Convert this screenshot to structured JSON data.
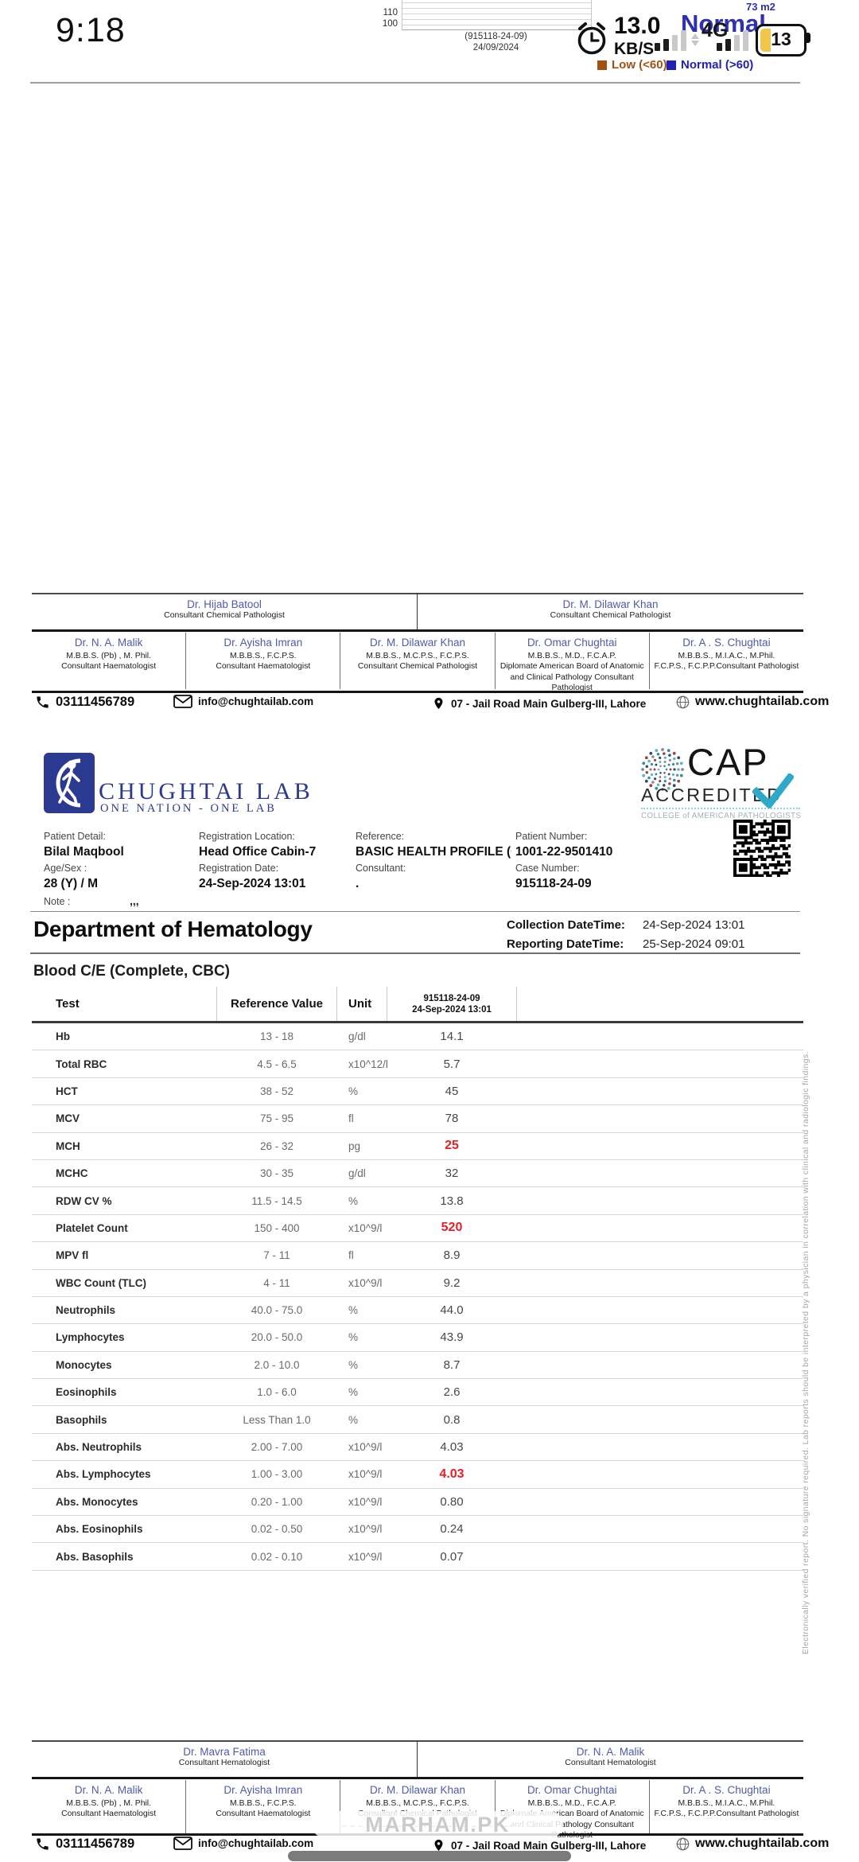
{
  "status_bar": {
    "time": "9:18",
    "net_speed": "13.0",
    "net_speed_unit": "KB/S",
    "network_type": "4G",
    "battery_level": "13"
  },
  "page1_chart": {
    "type": "line",
    "y_ticks": [
      "110",
      "100"
    ],
    "x_tick_line1": "(915118-24-09)",
    "x_tick_line2": "24/09/2024",
    "result_text": "Normal",
    "result_note": "73 m2",
    "legend_low": "Low (<60)",
    "legend_normal": "Normal (>60)",
    "legend_low_color": "#a05214",
    "legend_normal_color": "#2222b0"
  },
  "footer_page1": {
    "signatories": [
      {
        "name": "Dr. Hijab Batool",
        "title": "Consultant Chemical Pathologist"
      },
      {
        "name": "Dr. M. Dilawar Khan",
        "title": "Consultant Chemical Pathologist"
      }
    ]
  },
  "footer_page2": {
    "signatories": [
      {
        "name": "Dr. Mavra Fatima",
        "title": "Consultant Hematologist"
      },
      {
        "name": "Dr. N. A. Malik",
        "title": "Consultant Hematologist"
      }
    ]
  },
  "panel_doctors": [
    {
      "name": "Dr. N. A. Malik",
      "qual": "M.B.B.S. (Pb) , M. Phil.",
      "title": "Consultant Haematologist"
    },
    {
      "name": "Dr. Ayisha Imran",
      "qual": "M.B.B.S., F.C.P.S.",
      "title": "Consultant Haematologist"
    },
    {
      "name": "Dr. M. Dilawar Khan",
      "qual": "M.B.B.S., M.C.P.S., F.C.P.S.",
      "title": "Consultant Chemical Pathologist"
    },
    {
      "name": "Dr. Omar Chughtai",
      "qual": "M.B.B.S., M.D., F.C.A.P.",
      "title": "Diplomate American Board of Anatomic and Clinical Pathology Consultant Pathologist"
    },
    {
      "name": "Dr. A . S. Chughtai",
      "qual": "M.B.B.S., M.I.A.C., M.Phil.",
      "title": "F.C.P.S., F.C.P.P.Consultant Pathologist"
    }
  ],
  "contact": {
    "phone": "03111456789",
    "email": "info@chughtailab.com",
    "address": "07 - Jail Road Main Gulberg-III, Lahore",
    "website": "www.chughtailab.com"
  },
  "brand": {
    "lab_name": "CHUGHTAI LAB",
    "tagline": "ONE NATION - ONE LAB",
    "cap_title": "CAP",
    "cap_accredited": "ACCREDITED",
    "cap_college": "COLLEGE of AMERICAN PATHOLOGISTS"
  },
  "patient": {
    "labels": {
      "detail": "Patient Detail:",
      "reg_location": "Registration Location:",
      "reference": "Reference:",
      "patient_number": "Patient Number:",
      "age_sex": "Age/Sex :",
      "reg_date": "Registration Date:",
      "consultant": "Consultant:",
      "case_number": "Case Number:",
      "note": "Note :"
    },
    "name": "Bilal Maqbool",
    "reg_location": "Head Office Cabin-7",
    "reference": "BASIC HEALTH PROFILE (CA",
    "patient_number": "1001-22-9501410",
    "age_sex": "28 (Y) / M",
    "reg_date": "24-Sep-2024 13:01",
    "consultant": ".",
    "case_number": "915118-24-09",
    "note_value": ",,,"
  },
  "report": {
    "department": "Department of Hematology",
    "collection_label": "Collection DateTime:",
    "collection_value": "24-Sep-2024 13:01",
    "reporting_label": "Reporting DateTime:",
    "reporting_value": "25-Sep-2024 09:01",
    "test_title": "Blood C/E (Complete, CBC)"
  },
  "results_table": {
    "headers": {
      "test": "Test",
      "ref": "Reference Value",
      "unit": "Unit",
      "col_line1": "915118-24-09",
      "col_line2": "24-Sep-2024 13:01"
    },
    "rows": [
      {
        "test": "Hb",
        "ref": "13  -  18",
        "unit": "g/dl",
        "value": "14.1",
        "abnormal": false
      },
      {
        "test": "Total RBC",
        "ref": "4.5  -  6.5",
        "unit": "x10^12/l",
        "value": "5.7",
        "abnormal": false
      },
      {
        "test": "HCT",
        "ref": "38  -  52",
        "unit": "%",
        "value": "45",
        "abnormal": false
      },
      {
        "test": "MCV",
        "ref": "75  -  95",
        "unit": "fl",
        "value": "78",
        "abnormal": false
      },
      {
        "test": "MCH",
        "ref": "26  -  32",
        "unit": "pg",
        "value": "25",
        "abnormal": true
      },
      {
        "test": "MCHC",
        "ref": "30  -  35",
        "unit": "g/dl",
        "value": "32",
        "abnormal": false
      },
      {
        "test": "RDW CV %",
        "ref": "11.5  -  14.5",
        "unit": "%",
        "value": "13.8",
        "abnormal": false
      },
      {
        "test": "Platelet Count",
        "ref": "150  -  400",
        "unit": "x10^9/l",
        "value": "520",
        "abnormal": true
      },
      {
        "test": "MPV fl",
        "ref": "7  -  11",
        "unit": "fl",
        "value": "8.9",
        "abnormal": false
      },
      {
        "test": "WBC Count (TLC)",
        "ref": "4  -  11",
        "unit": "x10^9/l",
        "value": "9.2",
        "abnormal": false
      },
      {
        "test": "Neutrophils",
        "ref": "40.0  -  75.0",
        "unit": "%",
        "value": "44.0",
        "abnormal": false
      },
      {
        "test": "Lymphocytes",
        "ref": "20.0  -  50.0",
        "unit": "%",
        "value": "43.9",
        "abnormal": false
      },
      {
        "test": "Monocytes",
        "ref": "2.0  -  10.0",
        "unit": "%",
        "value": "8.7",
        "abnormal": false
      },
      {
        "test": "Eosinophils",
        "ref": "1.0  -  6.0",
        "unit": "%",
        "value": "2.6",
        "abnormal": false
      },
      {
        "test": "Basophils",
        "ref": "Less Than 1.0",
        "unit": "%",
        "value": "0.8",
        "abnormal": false
      },
      {
        "test": "Abs. Neutrophils",
        "ref": "2.00  -  7.00",
        "unit": "x10^9/l",
        "value": "4.03",
        "abnormal": false
      },
      {
        "test": "Abs. Lymphocytes",
        "ref": "1.00  -  3.00",
        "unit": "x10^9/l",
        "value": "4.03",
        "abnormal": true
      },
      {
        "test": "Abs. Monocytes",
        "ref": "0.20  -  1.00",
        "unit": "x10^9/l",
        "value": "0.80",
        "abnormal": false
      },
      {
        "test": "Abs. Eosinophils",
        "ref": "0.02  -  0.50",
        "unit": "x10^9/l",
        "value": "0.24",
        "abnormal": false
      },
      {
        "test": "Abs. Basophils",
        "ref": "0.02  -  0.10",
        "unit": "x10^9/l",
        "value": "0.07",
        "abnormal": false
      }
    ]
  },
  "watermark": "MARHAM.PK",
  "disclaimer": "Electronically verified report. No signature required. Lab reports should be interpreted by a physician in correlation with clinical and radiologic findings."
}
